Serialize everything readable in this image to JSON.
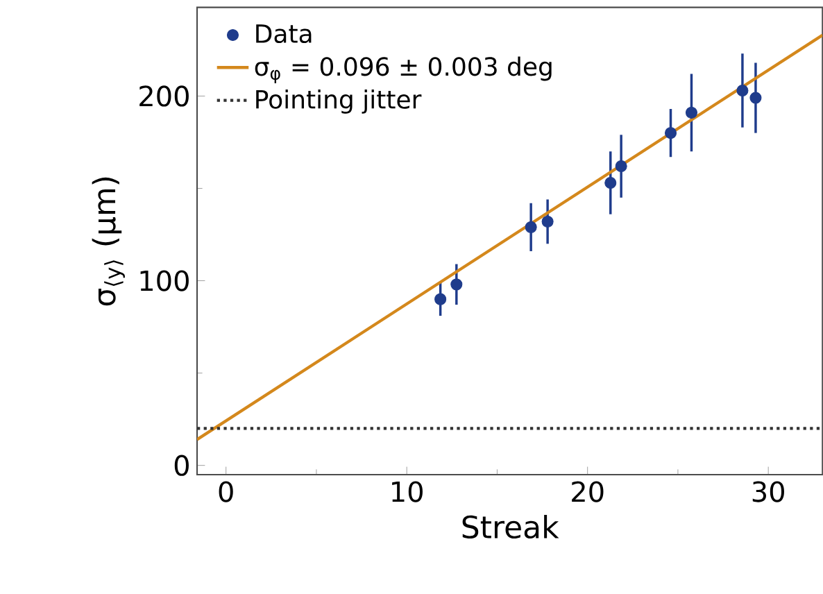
{
  "chart_data": {
    "type": "scatter",
    "xlabel": "Streak",
    "ylabel": "σ$_{⟨y⟩}$  (µm)",
    "xlim": [
      -1.6,
      33
    ],
    "ylim": [
      -5,
      248
    ],
    "xticks": [
      0,
      10,
      20,
      30
    ],
    "yticks": [
      0,
      100,
      200
    ],
    "legend": "top left",
    "series": [
      {
        "name": "Data",
        "marker": "circle",
        "color": "#1f3c8c",
        "x": [
          11.86,
          12.75,
          16.87,
          17.79,
          21.27,
          21.86,
          24.6,
          25.75,
          28.57,
          29.3
        ],
        "values": [
          90,
          98,
          129,
          132,
          153,
          162,
          180,
          191,
          203,
          199
        ],
        "errors": [
          9,
          11,
          13,
          12,
          17,
          17,
          13,
          21,
          20,
          19
        ]
      },
      {
        "name": "σ$_{φ}$ = 0.096 ± 0.003 deg",
        "type": "line",
        "line_style": "solid",
        "color": "#d4881c",
        "x": [
          -1.6,
          33
        ],
        "values": [
          14,
          233
        ]
      }
    ],
    "ref_lines": [
      {
        "axis": "y",
        "value": 20,
        "label": "Pointing jitter",
        "color": "#333333",
        "line_style": "dotted"
      }
    ]
  }
}
